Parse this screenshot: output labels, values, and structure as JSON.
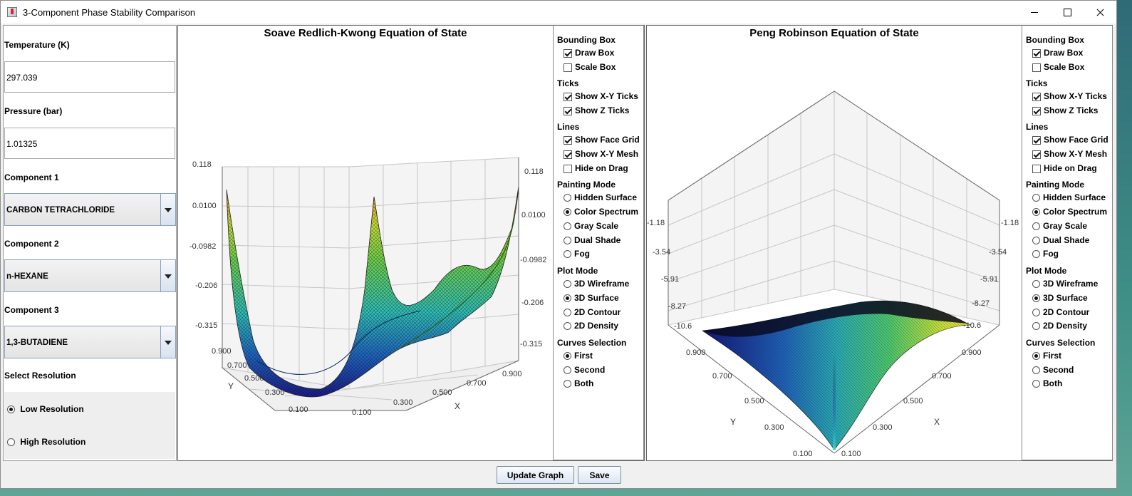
{
  "window": {
    "title": "3-Component Phase Stability Comparison"
  },
  "left_panel": {
    "temperature_label": "Temperature (K)",
    "temperature_value": "297.039",
    "pressure_label": "Pressure (bar)",
    "pressure_value": "1.01325",
    "component1_label": "Component 1",
    "component1_value": "CARBON TETRACHLORIDE",
    "component2_label": "Component 2",
    "component2_value": "n-HEXANE",
    "component3_label": "Component 3",
    "component3_value": "1,3-BUTADIENE",
    "resolution_label": "Select Resolution",
    "resolution_options": [
      "Low Resolution",
      "High Resolution"
    ],
    "resolution_selected": "Low Resolution"
  },
  "controls": {
    "bounding_box": "Bounding Box",
    "draw_box": "Draw Box",
    "scale_box": "Scale Box",
    "ticks": "Ticks",
    "show_xy_ticks": "Show X-Y Ticks",
    "show_z_ticks": "Show Z Ticks",
    "lines": "Lines",
    "show_face_grid": "Show Face Grid",
    "show_xy_mesh": "Show X-Y Mesh",
    "hide_on_drag": "Hide on Drag",
    "painting_mode": "Painting Mode",
    "hidden_surface": "Hidden Surface",
    "color_spectrum": "Color Spectrum",
    "gray_scale": "Gray Scale",
    "dual_shade": "Dual Shade",
    "fog": "Fog",
    "plot_mode": "Plot Mode",
    "wireframe_3d": "3D Wireframe",
    "surface_3d": "3D Surface",
    "contour_2d": "2D Contour",
    "density_2d": "2D Density",
    "curves_selection": "Curves Selection",
    "first": "First",
    "second": "Second",
    "both": "Both",
    "state": {
      "draw_box": true,
      "scale_box": false,
      "show_xy_ticks": true,
      "show_z_ticks": true,
      "show_face_grid": true,
      "show_xy_mesh": true,
      "hide_on_drag": false,
      "painting_mode": "Color Spectrum",
      "plot_mode": "3D Surface",
      "curves": "First"
    }
  },
  "buttons": {
    "update": "Update Graph",
    "save": "Save"
  },
  "plots": {
    "srk": {
      "title": "Soave Redlich-Kwong Equation of State",
      "z_ticks": [
        "0.118",
        "0.0100",
        "-0.0982",
        "-0.206",
        "-0.315"
      ],
      "y_ticks": [
        "0.900",
        "0.700",
        "0.500",
        "0.300",
        "0.100"
      ],
      "x_ticks": [
        "0.100",
        "0.300",
        "0.500",
        "0.700",
        "0.900"
      ],
      "xlabel": "X",
      "ylabel": "Y"
    },
    "pr": {
      "title": "Peng Robinson Equation of State",
      "z_ticks": [
        "-1.18",
        "-3.54",
        "-5.91",
        "-8.27",
        "-10.6"
      ],
      "y_ticks": [
        "0.900",
        "0.700",
        "0.500",
        "0.300",
        "0.100"
      ],
      "x_ticks": [
        "0.100",
        "0.300",
        "0.500",
        "0.700",
        "0.900"
      ],
      "xlabel": "X",
      "ylabel": "Y"
    }
  }
}
